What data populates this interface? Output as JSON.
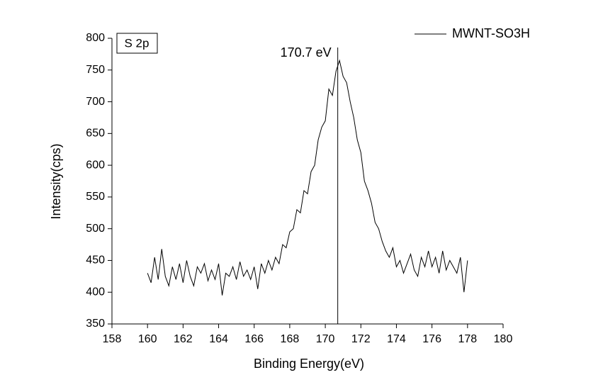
{
  "chart_data": {
    "type": "line",
    "x_label": "Binding Energy(eV)",
    "y_label": "Intensity(cps)",
    "panel_label": "S 2p",
    "annotations": [
      {
        "text": "170.7 eV",
        "x": 170.7
      }
    ],
    "legend_position": "top-right",
    "xlim": [
      158,
      180
    ],
    "xticks": [
      158,
      160,
      162,
      164,
      166,
      168,
      170,
      172,
      174,
      176,
      178,
      180
    ],
    "ylim": [
      350,
      800
    ],
    "yticks": [
      350,
      400,
      450,
      500,
      550,
      600,
      650,
      700,
      750,
      800
    ],
    "x": [
      160.0,
      160.2,
      160.4,
      160.6,
      160.8,
      161.0,
      161.2,
      161.4,
      161.6,
      161.8,
      162.0,
      162.2,
      162.4,
      162.6,
      162.8,
      163.0,
      163.2,
      163.4,
      163.6,
      163.8,
      164.0,
      164.2,
      164.4,
      164.6,
      164.8,
      165.0,
      165.2,
      165.4,
      165.6,
      165.8,
      166.0,
      166.2,
      166.4,
      166.6,
      166.8,
      167.0,
      167.2,
      167.4,
      167.6,
      167.8,
      168.0,
      168.2,
      168.4,
      168.6,
      168.8,
      169.0,
      169.2,
      169.4,
      169.6,
      169.8,
      170.0,
      170.2,
      170.4,
      170.6,
      170.8,
      171.0,
      171.2,
      171.4,
      171.6,
      171.8,
      172.0,
      172.2,
      172.4,
      172.6,
      172.8,
      173.0,
      173.2,
      173.4,
      173.6,
      173.8,
      174.0,
      174.2,
      174.4,
      174.6,
      174.8,
      175.0,
      175.2,
      175.4,
      175.6,
      175.8,
      176.0,
      176.2,
      176.4,
      176.6,
      176.8,
      177.0,
      177.2,
      177.4,
      177.6,
      177.8,
      178.0
    ],
    "series": [
      {
        "name": "MWNT-SO3H",
        "color": "#000000",
        "values": [
          430,
          415,
          455,
          420,
          468,
          425,
          410,
          440,
          420,
          445,
          415,
          450,
          425,
          410,
          440,
          430,
          445,
          418,
          435,
          420,
          445,
          395,
          430,
          425,
          440,
          420,
          448,
          425,
          435,
          420,
          440,
          405,
          445,
          430,
          450,
          435,
          455,
          445,
          475,
          470,
          495,
          500,
          530,
          525,
          560,
          555,
          590,
          600,
          640,
          660,
          670,
          720,
          710,
          748,
          765,
          740,
          730,
          700,
          675,
          640,
          620,
          575,
          560,
          540,
          510,
          500,
          480,
          465,
          455,
          470,
          440,
          450,
          430,
          445,
          460,
          435,
          425,
          455,
          440,
          465,
          440,
          455,
          430,
          465,
          435,
          450,
          440,
          430,
          455,
          400,
          450
        ]
      }
    ]
  }
}
